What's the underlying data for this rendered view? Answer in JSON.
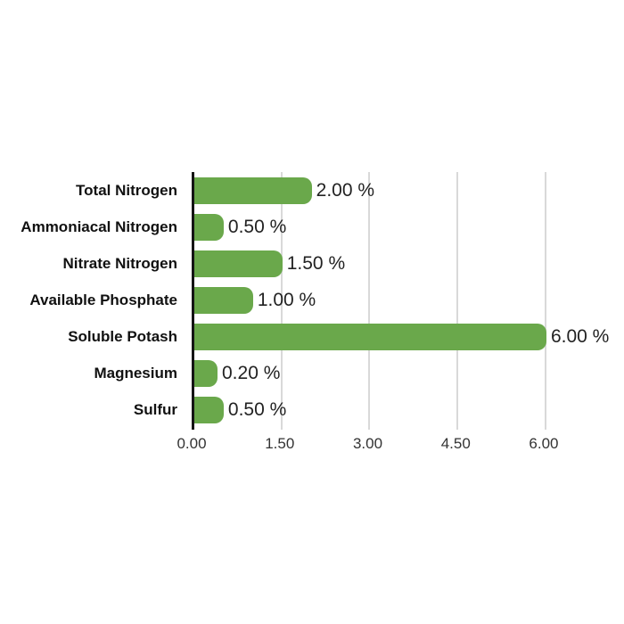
{
  "chart_data": {
    "type": "bar",
    "orientation": "horizontal",
    "title": "",
    "xlabel": "",
    "ylabel": "",
    "categories": [
      "Total Nitrogen",
      "Ammoniacal Nitrogen",
      "Nitrate Nitrogen",
      "Available Phosphate",
      "Soluble Potash",
      "Magnesium",
      "Sulfur"
    ],
    "values": [
      2.0,
      0.5,
      1.5,
      1.0,
      6.0,
      0.2,
      0.5
    ],
    "value_labels": [
      "2.00 %",
      "0.50 %",
      "1.50 %",
      "1.00 %",
      "6.00 %",
      "0.20 %",
      "0.50 %"
    ],
    "x_ticks": [
      "0.00",
      "1.50",
      "3.00",
      "4.50",
      "6.00"
    ],
    "x_tick_values": [
      0,
      1.5,
      3,
      4.5,
      6
    ],
    "xlim": [
      0,
      6
    ],
    "grid": "vertical-only",
    "legend": "none",
    "colors": {
      "bar": "#6aa84b",
      "gridline": "#d9d9d9",
      "axis": "#151515",
      "category_label": "#111111",
      "value_label": "#222222",
      "tick_label": "#333333",
      "background": "#ffffff"
    }
  }
}
